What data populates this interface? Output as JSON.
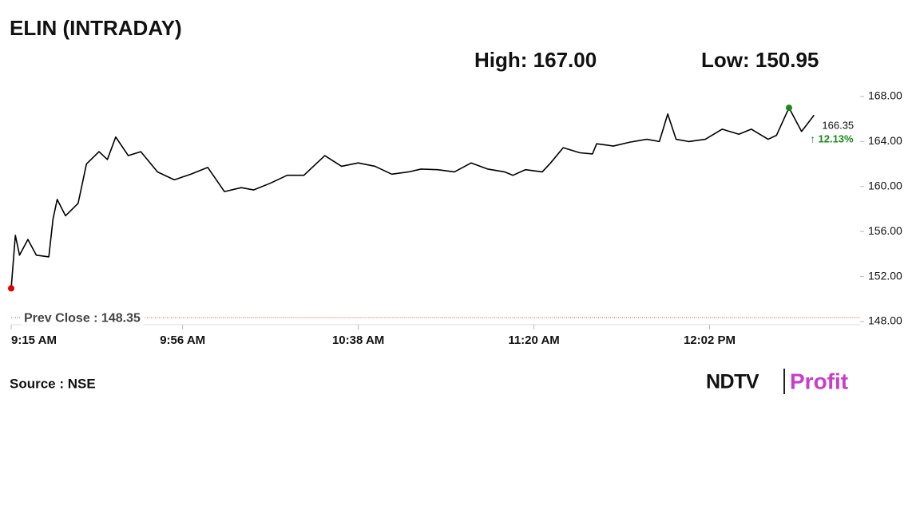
{
  "chart_data": {
    "type": "line",
    "title": "ELIN (INTRADAY)",
    "high_label": "High: 167.00",
    "low_label": "Low: 150.95",
    "source": "Source : NSE",
    "logo": [
      "NDTV",
      "Profit"
    ],
    "change_label": "↑ 12.13%",
    "prev_close": {
      "value": 148.35,
      "label": "Prev Close : 148.35"
    },
    "x": [
      "9:15 AM",
      "9:16 AM",
      "9:17 AM",
      "9:19 AM",
      "9:21 AM",
      "9:24 AM",
      "9:25 AM",
      "9:26 AM",
      "9:28 AM",
      "9:31 AM",
      "9:33 AM",
      "9:36 AM",
      "9:38 AM",
      "9:40 AM",
      "9:43 AM",
      "9:46 AM",
      "9:50 AM",
      "9:54 AM",
      "9:58 AM",
      "10:02 AM",
      "10:06 AM",
      "10:10 AM",
      "10:13 AM",
      "10:17 AM",
      "10:21 AM",
      "10:25 AM",
      "10:30 AM",
      "10:34 AM",
      "10:38 AM",
      "10:42 AM",
      "10:46 AM",
      "10:50 AM",
      "10:53 AM",
      "10:57 AM",
      "11:01 AM",
      "11:05 AM",
      "11:09 AM",
      "11:13 AM",
      "11:15 AM",
      "11:18 AM",
      "11:22 AM",
      "11:24 AM",
      "11:27 AM",
      "11:31 AM",
      "11:34 AM",
      "11:35 AM",
      "11:39 AM",
      "11:43 AM",
      "11:47 AM",
      "11:50 AM",
      "11:52 AM",
      "11:54 AM",
      "11:57 AM",
      "12:01 PM",
      "12:05 PM",
      "12:09 PM",
      "12:12 PM",
      "12:16 PM",
      "12:18 PM",
      "12:21 PM",
      "12:24 PM",
      "12:27 PM"
    ],
    "series": [
      {
        "name": "ELIN",
        "color": "#000000",
        "values": [
          150.95,
          155.66,
          153.9,
          155.3,
          153.9,
          153.75,
          157.1,
          158.85,
          157.4,
          158.5,
          162.0,
          163.1,
          162.4,
          164.4,
          162.75,
          163.1,
          161.3,
          160.6,
          161.1,
          161.7,
          159.55,
          159.9,
          159.7,
          160.3,
          161.0,
          161.0,
          162.75,
          161.8,
          162.1,
          161.8,
          161.1,
          161.3,
          161.55,
          161.5,
          161.3,
          162.1,
          161.55,
          161.3,
          161.0,
          161.5,
          161.3,
          162.1,
          163.45,
          163.0,
          162.9,
          163.8,
          163.6,
          163.95,
          164.2,
          164.0,
          166.45,
          164.2,
          164.0,
          164.2,
          165.1,
          164.65,
          165.1,
          164.2,
          164.55,
          167.0,
          164.9,
          166.35
        ]
      }
    ],
    "low_color": "#e00000",
    "high_color": "#1a8a1a",
    "change_color": "#1a8a1a",
    "prev_close_color": "#d05050",
    "xlim": [
      "9:15 AM",
      "12:38 PM"
    ],
    "xticks": [
      "9:15 AM",
      "9:56 AM",
      "10:38 AM",
      "11:20 AM",
      "12:02 PM"
    ],
    "ylim": [
      148,
      168
    ],
    "yticks": [
      {
        "value": 148,
        "label": "148.00"
      },
      {
        "value": 152,
        "label": "152.00"
      },
      {
        "value": 156,
        "label": "156.00"
      },
      {
        "value": 160,
        "label": "160.00"
      },
      {
        "value": 164,
        "label": "164.00"
      },
      {
        "value": 168,
        "label": "168.00"
      }
    ]
  }
}
